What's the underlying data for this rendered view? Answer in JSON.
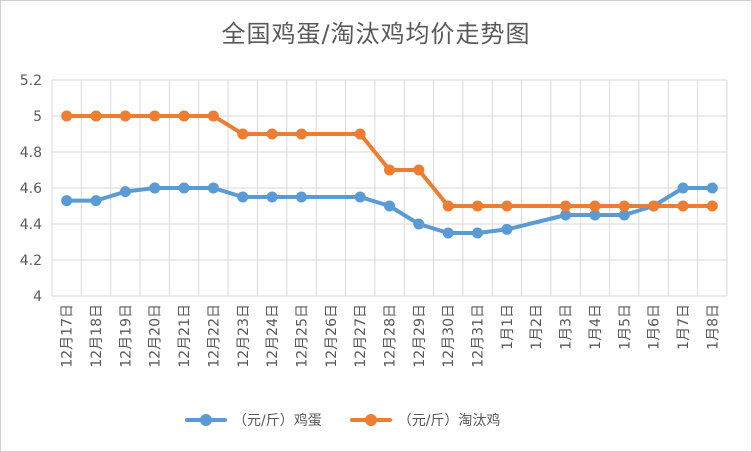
{
  "chart_data": {
    "type": "line",
    "title": "全国鸡蛋/淘汰鸡均价走势图",
    "xlabel": "",
    "ylabel": "",
    "ylim": [
      4,
      5.2
    ],
    "yticks": [
      "4",
      "4.2",
      "4.4",
      "4.6",
      "4.8",
      "5",
      "5.2"
    ],
    "grid": true,
    "legend_position": "bottom",
    "categories": [
      "12月17日",
      "12月18日",
      "12月19日",
      "12月20日",
      "12月21日",
      "12月22日",
      "12月23日",
      "12月24日",
      "12月25日",
      "12月26日",
      "12月27日",
      "12月28日",
      "12月29日",
      "12月30日",
      "12月31日",
      "1月1日",
      "1月2日",
      "1月3日",
      "1月4日",
      "1月5日",
      "1月6日",
      "1月7日",
      "1月8日"
    ],
    "series": [
      {
        "name": "（元/斤）鸡蛋",
        "color": "#5B9BD5",
        "values": [
          4.53,
          4.53,
          4.58,
          4.6,
          4.6,
          4.6,
          4.55,
          4.55,
          4.55,
          null,
          4.55,
          4.5,
          4.4,
          4.35,
          4.35,
          4.37,
          null,
          4.45,
          4.45,
          4.45,
          4.5,
          4.6,
          4.6
        ]
      },
      {
        "name": "（元/斤）淘汰鸡",
        "color": "#ED7D31",
        "values": [
          5,
          5,
          5,
          5,
          5,
          5,
          4.9,
          4.9,
          4.9,
          null,
          4.9,
          4.7,
          4.7,
          4.5,
          4.5,
          4.5,
          null,
          4.5,
          4.5,
          4.5,
          4.5,
          4.5,
          4.5
        ]
      }
    ]
  }
}
